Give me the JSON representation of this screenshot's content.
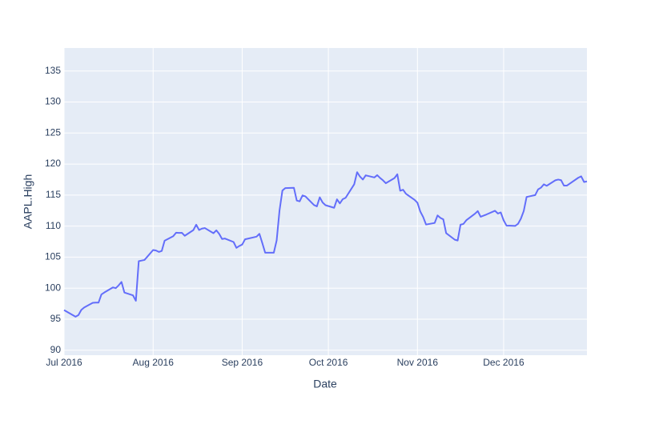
{
  "chart_data": {
    "type": "line",
    "x_label": "Date",
    "y_label": "AAPL.High",
    "color": "#636efa",
    "grid": true,
    "x": [
      "2016-07-01",
      "2016-07-05",
      "2016-07-06",
      "2016-07-07",
      "2016-07-08",
      "2016-07-11",
      "2016-07-12",
      "2016-07-13",
      "2016-07-14",
      "2016-07-15",
      "2016-07-18",
      "2016-07-19",
      "2016-07-20",
      "2016-07-21",
      "2016-07-22",
      "2016-07-25",
      "2016-07-26",
      "2016-07-27",
      "2016-07-28",
      "2016-07-29",
      "2016-08-01",
      "2016-08-02",
      "2016-08-03",
      "2016-08-04",
      "2016-08-05",
      "2016-08-08",
      "2016-08-09",
      "2016-08-10",
      "2016-08-11",
      "2016-08-12",
      "2016-08-15",
      "2016-08-16",
      "2016-08-17",
      "2016-08-18",
      "2016-08-19",
      "2016-08-22",
      "2016-08-23",
      "2016-08-24",
      "2016-08-25",
      "2016-08-26",
      "2016-08-29",
      "2016-08-30",
      "2016-08-31",
      "2016-09-01",
      "2016-09-02",
      "2016-09-06",
      "2016-09-07",
      "2016-09-08",
      "2016-09-09",
      "2016-09-12",
      "2016-09-13",
      "2016-09-14",
      "2016-09-15",
      "2016-09-16",
      "2016-09-19",
      "2016-09-20",
      "2016-09-21",
      "2016-09-22",
      "2016-09-23",
      "2016-09-26",
      "2016-09-27",
      "2016-09-28",
      "2016-09-29",
      "2016-09-30",
      "2016-10-03",
      "2016-10-04",
      "2016-10-05",
      "2016-10-06",
      "2016-10-07",
      "2016-10-10",
      "2016-10-11",
      "2016-10-12",
      "2016-10-13",
      "2016-10-14",
      "2016-10-17",
      "2016-10-18",
      "2016-10-19",
      "2016-10-20",
      "2016-10-21",
      "2016-10-24",
      "2016-10-25",
      "2016-10-26",
      "2016-10-27",
      "2016-10-28",
      "2016-10-31",
      "2016-11-01",
      "2016-11-02",
      "2016-11-03",
      "2016-11-04",
      "2016-11-07",
      "2016-11-08",
      "2016-11-09",
      "2016-11-10",
      "2016-11-11",
      "2016-11-14",
      "2016-11-15",
      "2016-11-16",
      "2016-11-17",
      "2016-11-18",
      "2016-11-21",
      "2016-11-22",
      "2016-11-23",
      "2016-11-25",
      "2016-11-28",
      "2016-11-29",
      "2016-11-30",
      "2016-12-01",
      "2016-12-02",
      "2016-12-05",
      "2016-12-06",
      "2016-12-07",
      "2016-12-08",
      "2016-12-09",
      "2016-12-12",
      "2016-12-13",
      "2016-12-14",
      "2016-12-15",
      "2016-12-16",
      "2016-12-19",
      "2016-12-20",
      "2016-12-21",
      "2016-12-22",
      "2016-12-23",
      "2016-12-27",
      "2016-12-28",
      "2016-12-29",
      "2016-12-30"
    ],
    "values": [
      96.47,
      95.4,
      95.66,
      96.5,
      96.89,
      97.65,
      97.67,
      97.67,
      98.99,
      99.3,
      100.13,
      100.0,
      100.46,
      101.0,
      99.3,
      98.84,
      97.97,
      104.35,
      104.45,
      104.55,
      106.15,
      106.07,
      105.84,
      106.0,
      107.65,
      108.37,
      108.94,
      108.9,
      108.93,
      108.44,
      109.36,
      110.23,
      109.37,
      109.6,
      109.69,
      108.86,
      109.32,
      108.75,
      107.93,
      108.0,
      107.44,
      106.5,
      106.8,
      107.03,
      107.88,
      108.3,
      108.76,
      107.27,
      105.72,
      105.72,
      107.7,
      112.53,
      115.73,
      116.13,
      116.18,
      114.12,
      113.99,
      114.94,
      114.79,
      113.39,
      113.18,
      114.64,
      113.8,
      113.37,
      112.95,
      114.31,
      113.66,
      114.34,
      114.56,
      116.75,
      118.69,
      117.98,
      117.5,
      118.18,
      117.84,
      118.21,
      117.76,
      117.38,
      116.91,
      117.74,
      118.36,
      115.7,
      115.86,
      115.21,
      114.23,
      113.77,
      112.35,
      111.46,
      110.25,
      110.51,
      111.72,
      111.32,
      111.09,
      108.87,
      107.81,
      107.68,
      110.23,
      110.35,
      110.94,
      111.99,
      112.42,
      111.51,
      111.87,
      112.47,
      112.03,
      112.2,
      110.94,
      110.09,
      110.03,
      110.36,
      111.19,
      112.43,
      114.7,
      115.0,
      115.92,
      116.2,
      116.73,
      116.5,
      117.38,
      117.5,
      117.4,
      116.52,
      116.52,
      117.8,
      118.02,
      117.11,
      117.2
    ],
    "xlim": [
      "2016-07-01",
      "2016-12-30"
    ],
    "xticks": [
      {
        "value": "2016-07-01",
        "label": "Jul 2016"
      },
      {
        "value": "2016-08-01",
        "label": "Aug 2016"
      },
      {
        "value": "2016-09-01",
        "label": "Sep 2016"
      },
      {
        "value": "2016-10-01",
        "label": "Oct 2016"
      },
      {
        "value": "2016-11-01",
        "label": "Nov 2016"
      },
      {
        "value": "2016-12-01",
        "label": "Dec 2016"
      }
    ],
    "ylim": [
      89.2,
      138.7
    ],
    "yticks": [
      90,
      95,
      100,
      105,
      110,
      115,
      120,
      125,
      130,
      135
    ]
  }
}
